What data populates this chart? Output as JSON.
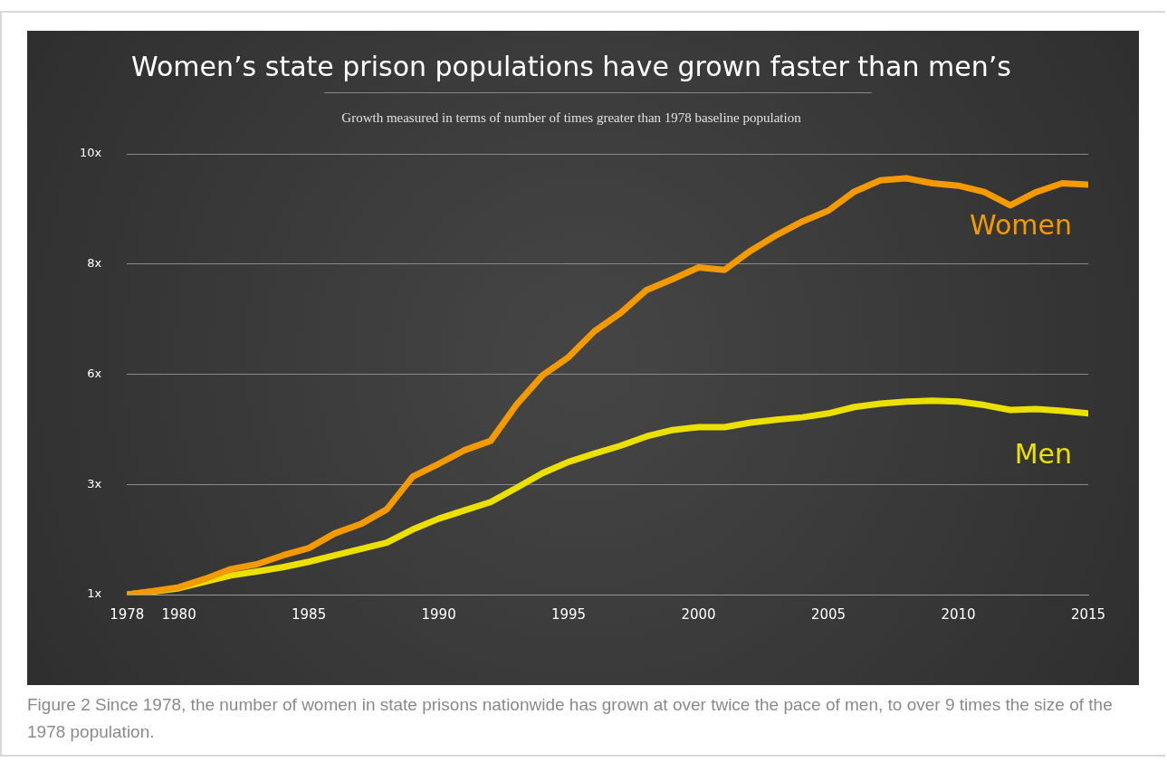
{
  "chart_data": {
    "type": "line",
    "title": "Women’s state prison populations have grown faster than men’s",
    "subtitle": "Growth measured in terms of number of times greater than 1978 baseline population",
    "x": [
      1978,
      1979,
      1980,
      1981,
      1982,
      1983,
      1984,
      1985,
      1986,
      1987,
      1988,
      1989,
      1990,
      1991,
      1992,
      1993,
      1994,
      1995,
      1996,
      1997,
      1998,
      1999,
      2000,
      2001,
      2002,
      2003,
      2004,
      2005,
      2006,
      2007,
      2008,
      2009,
      2010,
      2011,
      2012,
      2013,
      2014,
      2015
    ],
    "series": [
      {
        "name": "Women",
        "color": "#f39a00",
        "values": [
          1.0,
          1.07,
          1.15,
          1.32,
          1.52,
          1.62,
          1.8,
          1.95,
          2.25,
          2.44,
          2.74,
          3.41,
          3.67,
          3.95,
          4.14,
          4.88,
          5.48,
          5.85,
          6.38,
          6.75,
          7.22,
          7.44,
          7.68,
          7.63,
          8.02,
          8.34,
          8.62,
          8.84,
          9.23,
          9.46,
          9.5,
          9.4,
          9.35,
          9.22,
          8.95,
          9.22,
          9.4,
          9.37
        ]
      },
      {
        "name": "Men",
        "color": "#ebe000",
        "values": [
          1.0,
          1.06,
          1.13,
          1.26,
          1.39,
          1.47,
          1.56,
          1.67,
          1.8,
          1.93,
          2.06,
          2.33,
          2.55,
          2.72,
          2.89,
          3.18,
          3.48,
          3.71,
          3.88,
          4.04,
          4.23,
          4.36,
          4.42,
          4.42,
          4.51,
          4.57,
          4.62,
          4.7,
          4.83,
          4.9,
          4.94,
          4.96,
          4.94,
          4.87,
          4.77,
          4.79,
          4.75,
          4.7
        ]
      }
    ],
    "xlim": [
      1978,
      2015
    ],
    "xticks": [
      1978,
      1980,
      1985,
      1990,
      1995,
      2000,
      2005,
      2010,
      2015
    ],
    "ylim": [
      1,
      10
    ],
    "yticks": [
      {
        "value": 1,
        "label": "1x"
      },
      {
        "value": 3.25,
        "label": "3x"
      },
      {
        "value": 5.5,
        "label": "6x"
      },
      {
        "value": 7.75,
        "label": "8x"
      },
      {
        "value": 10,
        "label": "10x"
      }
    ],
    "grid": "y",
    "legend": false,
    "marker": "none",
    "line_style": "solid",
    "annotations": [
      "Figure 2 Since 1978, the number of women in state prisons nationwide has grown at over twice the pace of men, to over 9 times the size of the 1978 population."
    ]
  }
}
